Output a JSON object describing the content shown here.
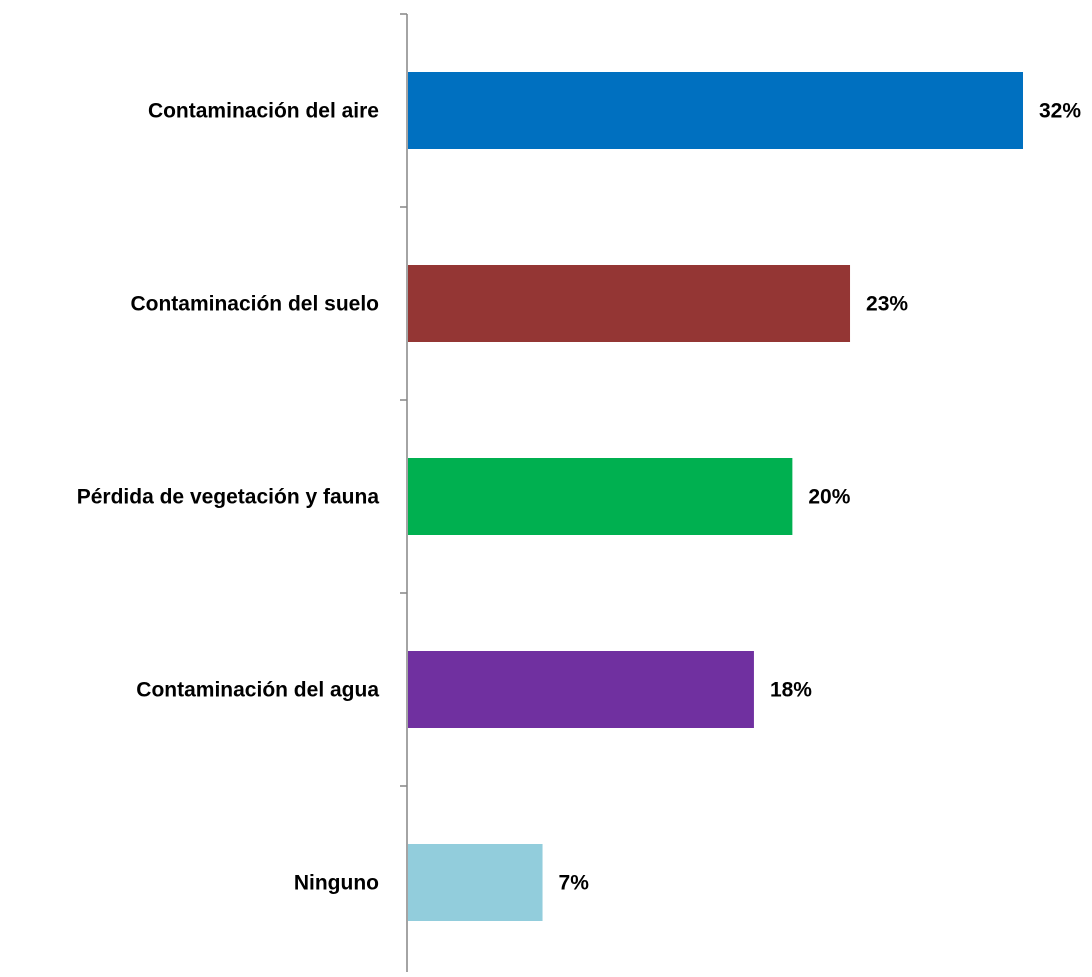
{
  "chart_data": {
    "type": "bar",
    "orientation": "horizontal",
    "title": "",
    "xlabel": "",
    "ylabel": "",
    "categories": [
      "Contaminación del aire",
      "Contaminación del suelo",
      "Pérdida de vegetación y fauna",
      "Contaminación del agua",
      "Ninguno"
    ],
    "values": [
      32,
      23,
      20,
      18,
      7
    ],
    "value_labels": [
      "32%",
      "23%",
      "20%",
      "18%",
      "7%"
    ],
    "colors": [
      "#0070C0",
      "#943634",
      "#00B050",
      "#7030A0",
      "#92CDDC"
    ],
    "xlim": [
      0,
      32
    ],
    "grid": false,
    "legend": "none"
  }
}
